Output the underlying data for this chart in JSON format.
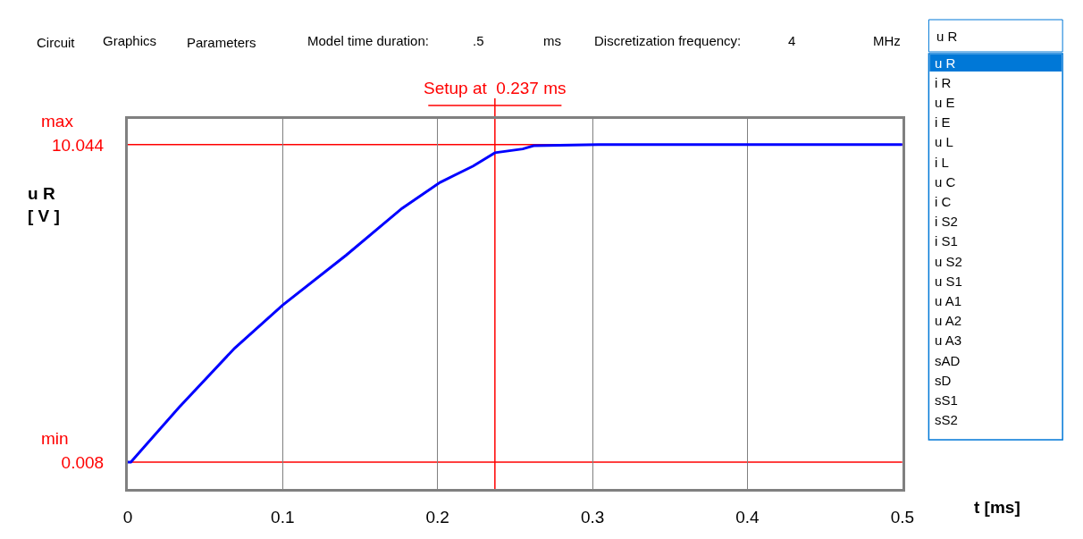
{
  "chart_data": {
    "type": "line",
    "ylabel": "u R\n[ V ]",
    "xlabel": "t [ms]",
    "x": [
      0.0,
      0.002,
      0.033,
      0.069,
      0.1,
      0.141,
      0.177,
      0.2016,
      0.223,
      0.237,
      0.255,
      0.262,
      0.304,
      0.5
    ],
    "series": [
      {
        "color": "#0000ff",
        "values": [
          0.008,
          0.008,
          1.73,
          3.61,
          4.97,
          6.55,
          8.03,
          8.85,
          9.37,
          9.79,
          9.91,
          10.01,
          10.044,
          10.044
        ]
      }
    ],
    "xlim": [
      0,
      0.5
    ],
    "xticks": [
      0,
      0.1,
      0.2,
      0.3,
      0.4,
      0.5
    ],
    "ylim": [
      -0.84,
      10.86
    ],
    "yticks": [
      0.008,
      10.044
    ],
    "grid": "x",
    "marker": "none",
    "line_style": "solid",
    "ref_lines": [
      {
        "axis": "y",
        "value": 10.044,
        "color": "#ff0000"
      },
      {
        "axis": "y",
        "value": 0.008,
        "color": "#ff0000"
      },
      {
        "axis": "x",
        "value": 0.237,
        "label": "Setup at  0.237 ms",
        "color": "#ff0000"
      }
    ],
    "annotations": [
      "max",
      "min",
      "Circuit",
      "Graphics",
      "Parameters",
      "Model time duration:",
      ".5",
      "ms",
      "Discretization frequency:",
      "4",
      "MHz",
      "u R",
      "u R",
      "i R",
      "u E",
      "i E",
      "u L",
      "i L",
      "u C",
      "i C",
      "i S2",
      "i S1",
      "u S2",
      "u S1",
      "u A1",
      "u A2",
      "u A3",
      "sAD",
      "sD",
      "sS1",
      "sS2"
    ]
  }
}
